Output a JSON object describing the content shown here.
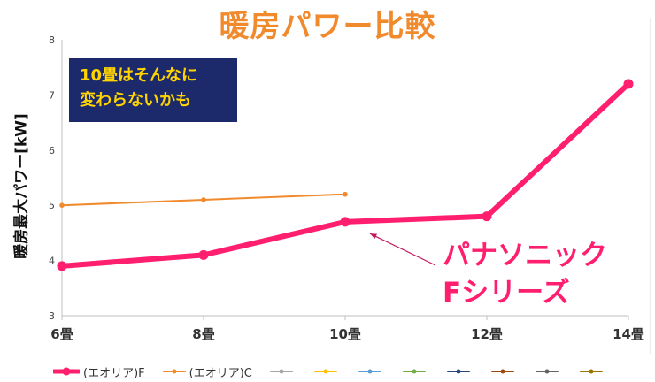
{
  "title": "暖房パワー比較",
  "ylabel": "暖房最大パワー[kW]",
  "note": {
    "line1": "10畳はそんなに",
    "line2": "変わらないかも"
  },
  "callout": {
    "line1": "パナソニック",
    "line2": "Fシリーズ"
  },
  "chart_data": {
    "type": "line",
    "categories": [
      "6畳",
      "8畳",
      "10畳",
      "12畳",
      "14畳"
    ],
    "ylim": [
      3,
      8
    ],
    "yticks": [
      "3",
      "4",
      "5",
      "6",
      "7",
      "8"
    ],
    "grid": false,
    "legend_position": "bottom",
    "series": [
      {
        "name": "(エオリア)F",
        "values": [
          3.9,
          4.1,
          4.7,
          4.8,
          7.2
        ],
        "color": "#ff1f6e"
      },
      {
        "name": "(エオリア)C",
        "values": [
          5.0,
          5.1,
          5.2,
          null,
          null
        ],
        "color": "#f08a2c"
      }
    ],
    "legend_extra_colors": [
      "#a6a6a6",
      "#ffc000",
      "#5b9bd5",
      "#70ad47",
      "#264478",
      "#9e480e",
      "#636363",
      "#997300"
    ]
  }
}
